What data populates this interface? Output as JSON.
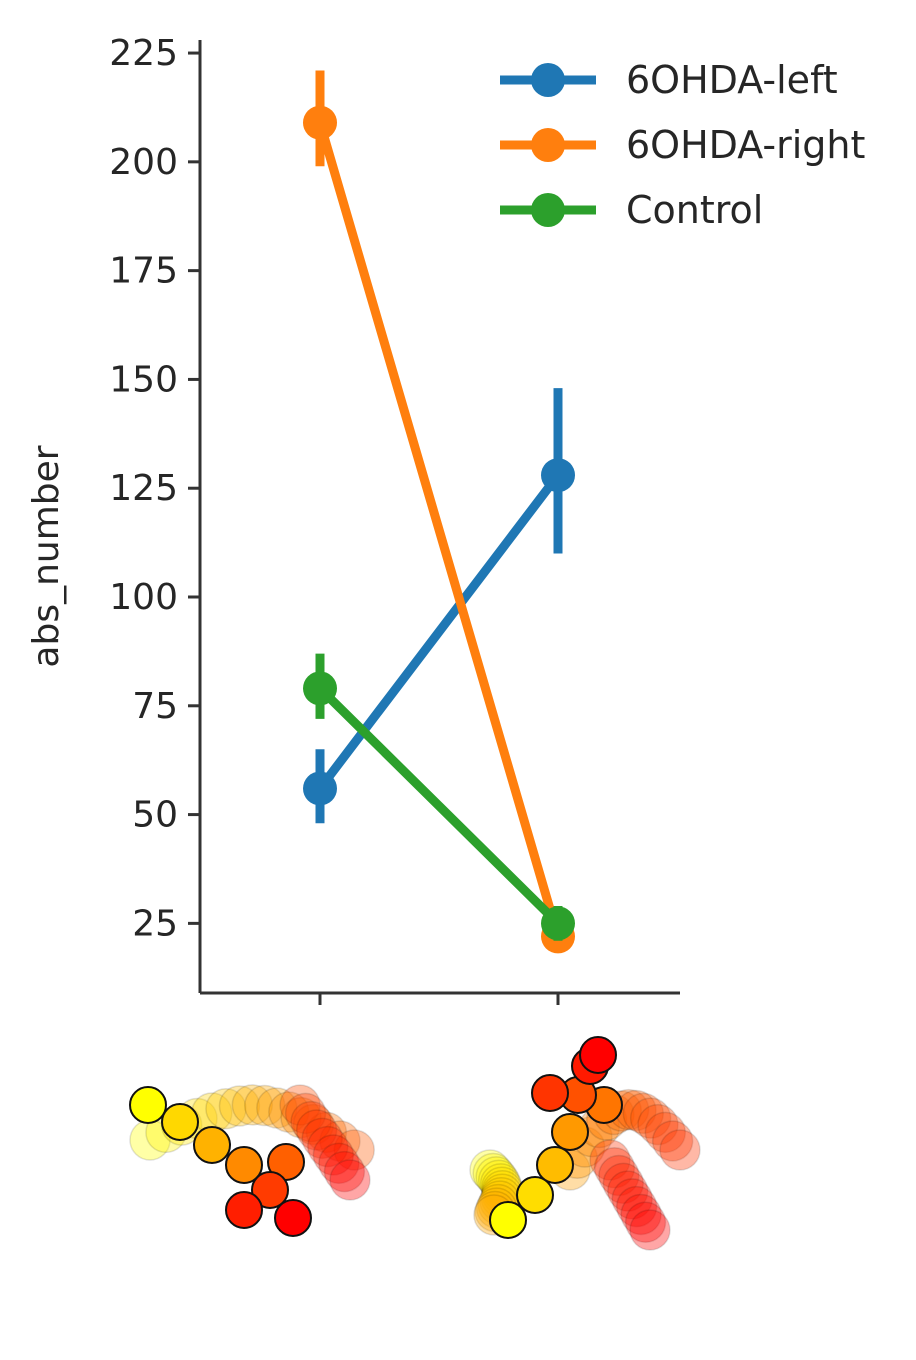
{
  "chart_data": {
    "type": "line",
    "ylabel": "abs_number",
    "xlabel": "",
    "ylim": [
      9,
      228
    ],
    "yticks": [
      25,
      50,
      75,
      100,
      125,
      150,
      175,
      200,
      225
    ],
    "categories": [
      "",
      ""
    ],
    "grid": false,
    "legend_position": "top-right",
    "series": [
      {
        "name": "6OHDA-left",
        "color": "#1f77b4",
        "values": [
          56,
          128
        ],
        "err_low": [
          48,
          110
        ],
        "err_high": [
          65,
          148
        ]
      },
      {
        "name": "6OHDA-right",
        "color": "#ff7f0e",
        "values": [
          209,
          22
        ],
        "err_low": [
          199,
          19
        ],
        "err_high": [
          221,
          25
        ]
      },
      {
        "name": "Control",
        "color": "#2ca02c",
        "values": [
          79,
          25
        ],
        "err_low": [
          72,
          21
        ],
        "err_high": [
          87,
          29
        ]
      }
    ],
    "category_images": [
      "left-turn-trajectory-icon",
      "right-turn-trajectory-icon"
    ]
  }
}
